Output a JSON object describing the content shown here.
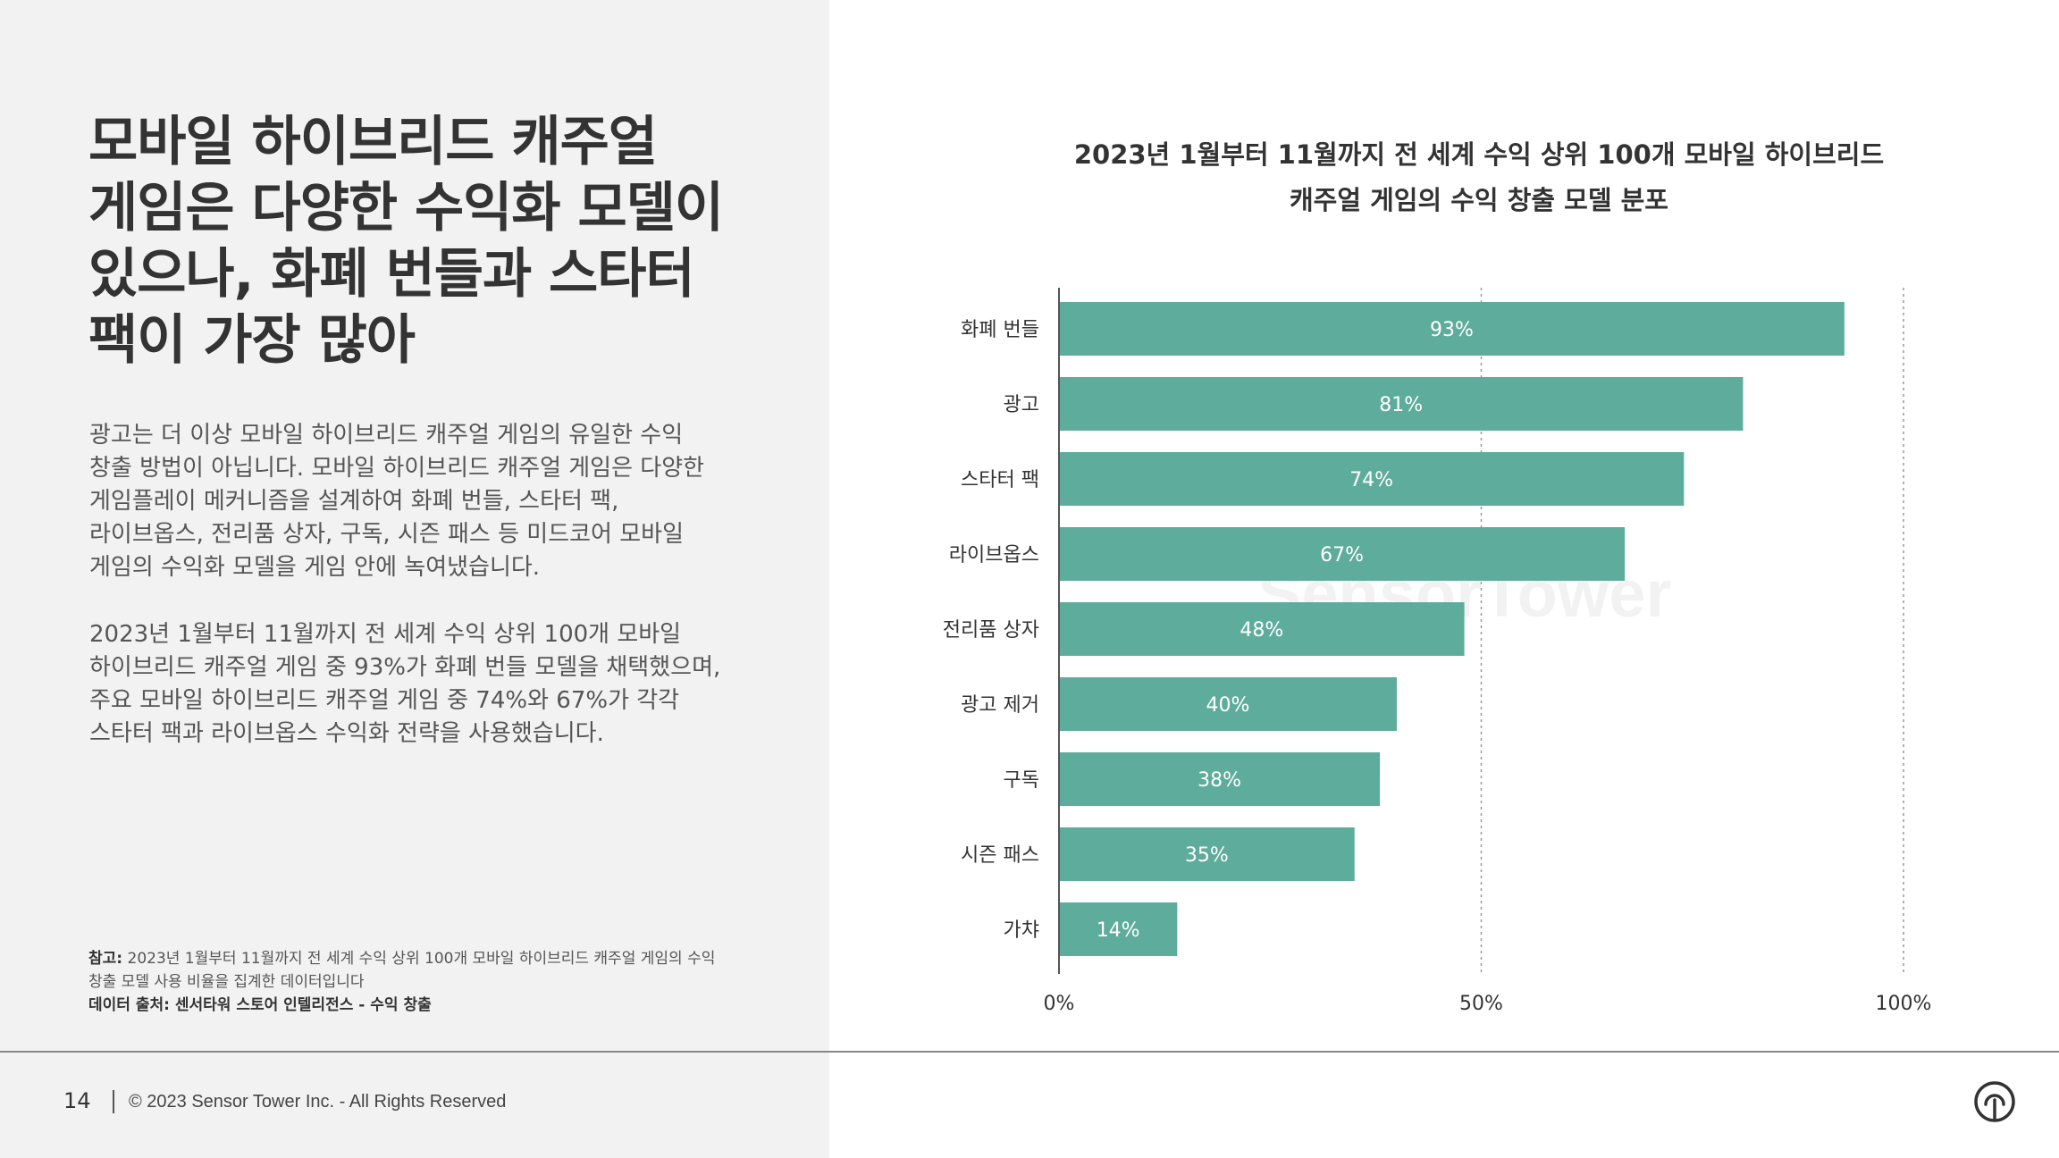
{
  "headline": "모바일 하이브리드 캐주얼 게임은 다양한 수익화 모델이 있으나, 화폐 번들과 스타터 팩이 가장 많아",
  "paragraphs": [
    "광고는 더 이상 모바일 하이브리드 캐주얼 게임의 유일한 수익 창출 방법이 아닙니다. 모바일 하이브리드 캐주얼 게임은 다양한 게임플레이 메커니즘을 설계하여 화폐 번들, 스타터 팩, 라이브옵스, 전리품 상자, 구독, 시즌 패스 등 미드코어 모바일 게임의 수익화 모델을 게임 안에 녹여냈습니다.",
    "2023년 1월부터 11월까지 전 세계 수익 상위 100개 모바일 하이브리드 캐주얼 게임 중 93%가 화폐 번들 모델을 채택했으며, 주요 모바일 하이브리드 캐주얼 게임 중 74%와 67%가 각각 스타터 팩과 라이브옵스 수익화 전략을 사용했습니다."
  ],
  "note": {
    "label": "참고:",
    "text": "2023년 1월부터 11월까지 전 세계 수익 상위 100개 모바일 하이브리드 캐주얼 게임의 수익 창출 모델 사용 비율을 집계한 데이터입니다",
    "source": "데이터 출처: 센서타워 스토어 인텔리전스 - 수익 창출"
  },
  "footer": {
    "page_number": "14",
    "copyright": "© 2023 Sensor Tower Inc. - All Rights Reserved"
  },
  "watermark": "SensorTower",
  "chart_data": {
    "type": "bar",
    "orientation": "horizontal",
    "title_line1": "2023년 1월부터 11월까지 전 세계 수익 상위 100개 모바일 하이브리드",
    "title_line2": "캐주얼 게임의 수익 창출 모델 분포",
    "categories": [
      "화폐 번들",
      "광고",
      "스타터 팩",
      "라이브옵스",
      "전리품 상자",
      "광고 제거",
      "구독",
      "시즌 패스",
      "가챠"
    ],
    "values": [
      93,
      81,
      74,
      67,
      48,
      40,
      38,
      35,
      14
    ],
    "value_labels": [
      "93%",
      "81%",
      "74%",
      "67%",
      "48%",
      "40%",
      "38%",
      "35%",
      "14%"
    ],
    "xlim": [
      0,
      100
    ],
    "ticks": [
      0,
      50,
      100
    ],
    "tick_labels": [
      "0%",
      "50%",
      "100%"
    ],
    "grid": "vertical dotted",
    "bar_color": "#5eac9c"
  }
}
